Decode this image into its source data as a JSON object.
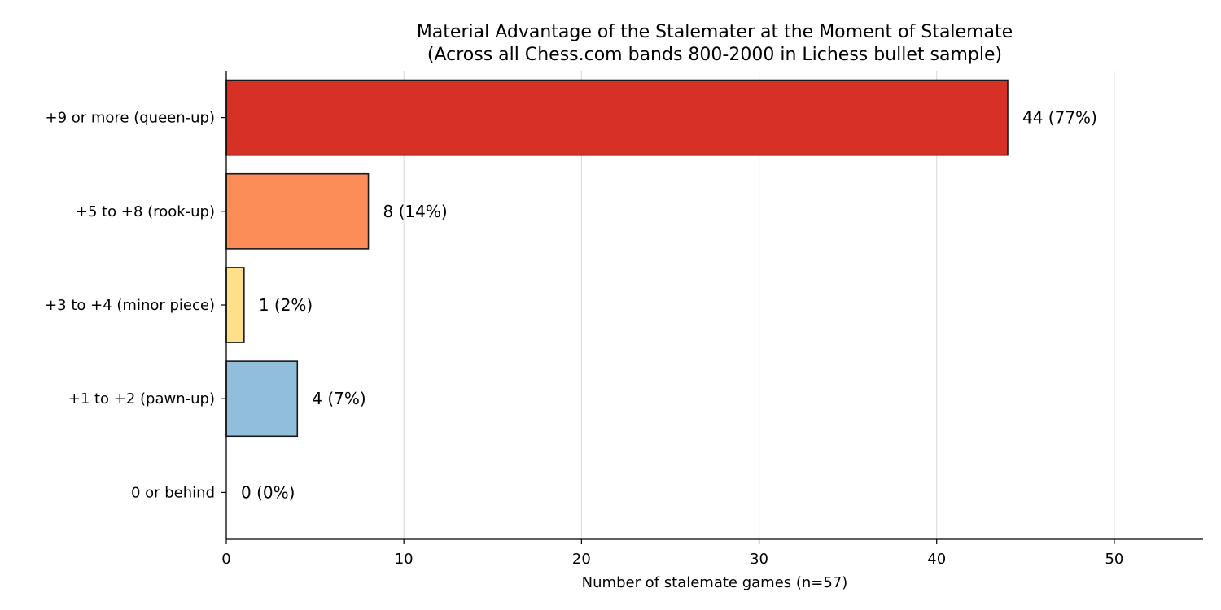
{
  "chart_data": {
    "type": "bar",
    "orientation": "horizontal",
    "title": "Material Advantage of the Stalemater at the Moment of Stalemate",
    "subtitle": "(Across all Chess.com bands 800-2000 in Lichess bullet sample)",
    "xlabel": "Number of stalemate games (n=57)",
    "ylabel": "",
    "xlim": [
      0,
      55
    ],
    "xticks": [
      0,
      10,
      20,
      30,
      40,
      50
    ],
    "grid": "vertical",
    "categories": [
      "+9 or more (queen-up)",
      "+5 to +8 (rook-up)",
      "+3 to +4 (minor piece)",
      "+1 to +2 (pawn-up)",
      "0 or behind"
    ],
    "values": [
      44,
      8,
      1,
      4,
      0
    ],
    "value_labels": [
      "44  (77%)",
      "8  (14%)",
      "1  (2%)",
      "4  (7%)",
      "0  (0%)"
    ],
    "colors": [
      "#d73027",
      "#fc8d59",
      "#fee08b",
      "#91bfdb",
      "#4575b4"
    ]
  }
}
